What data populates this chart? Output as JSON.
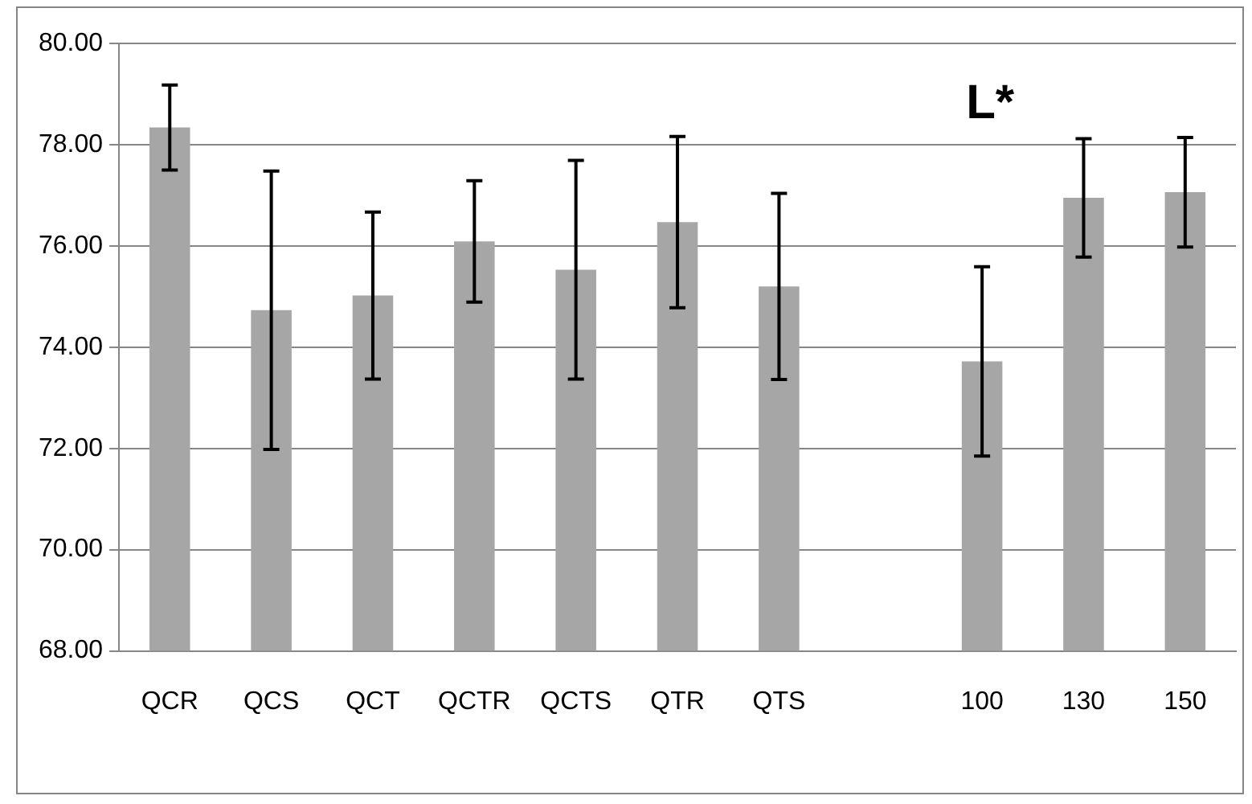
{
  "chart_data": {
    "type": "bar",
    "title": "L*",
    "categories": [
      "QCR",
      "QCS",
      "QCT",
      "QCTR",
      "QCTS",
      "QTR",
      "QTS",
      null,
      "100",
      "130",
      "150"
    ],
    "values": [
      78.34,
      74.73,
      75.02,
      76.09,
      75.53,
      76.47,
      75.2,
      null,
      73.72,
      76.95,
      77.06
    ],
    "errors": [
      0.84,
      2.75,
      1.65,
      1.2,
      2.16,
      1.69,
      1.84,
      null,
      1.87,
      1.17,
      1.08
    ],
    "color": "#a6a6a6",
    "ylim": [
      68,
      80
    ],
    "yticks": [
      {
        "value": 68,
        "label": "68.00"
      },
      {
        "value": 70,
        "label": "70.00"
      },
      {
        "value": 72,
        "label": "72.00"
      },
      {
        "value": 74,
        "label": "74.00"
      },
      {
        "value": 76,
        "label": "76.00"
      },
      {
        "value": 78,
        "label": "78.00"
      },
      {
        "value": 80,
        "label": "80.00"
      }
    ],
    "grid": "y",
    "legend": false
  }
}
